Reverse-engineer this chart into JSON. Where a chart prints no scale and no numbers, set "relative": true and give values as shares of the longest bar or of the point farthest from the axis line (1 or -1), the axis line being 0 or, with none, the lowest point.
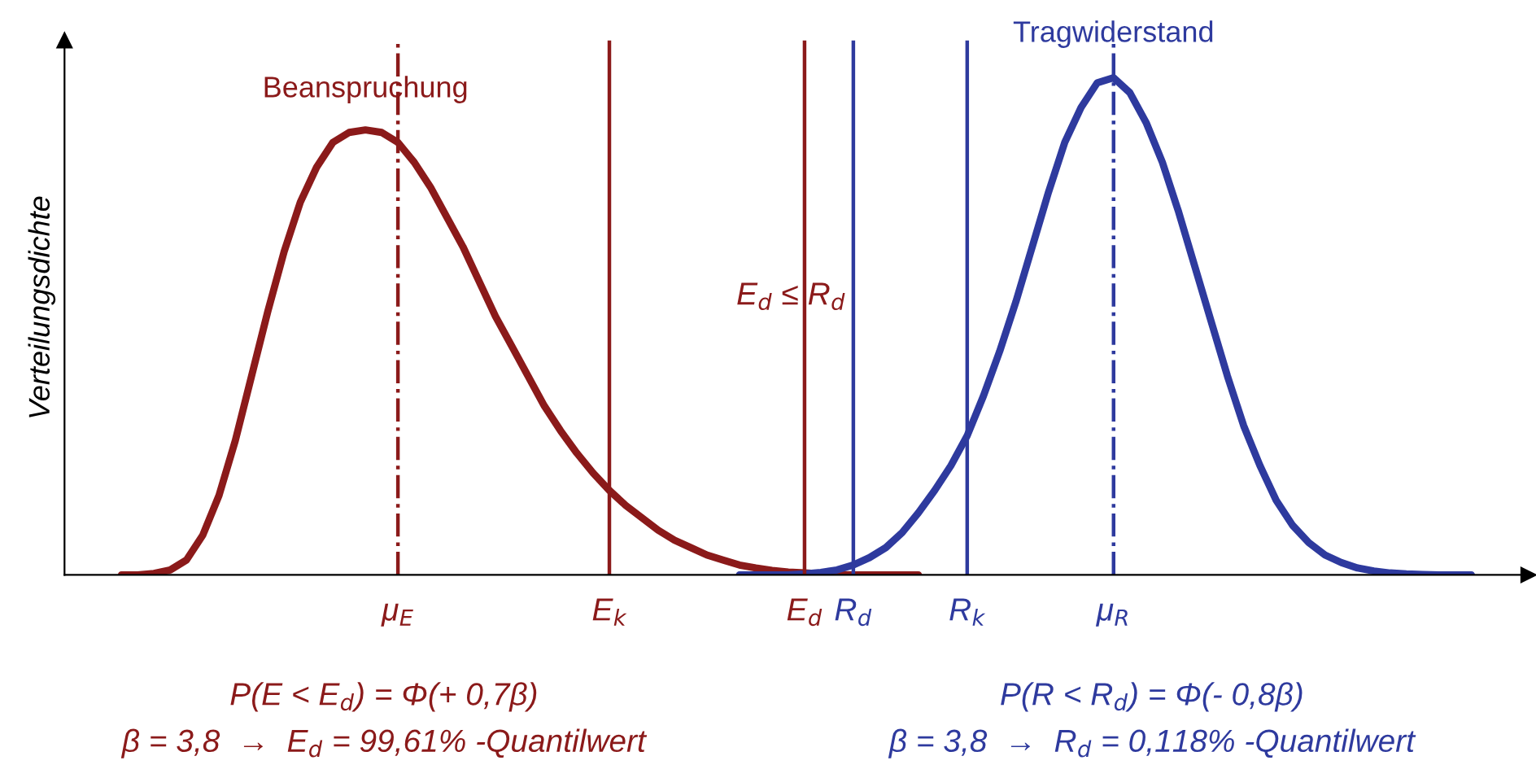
{
  "chart_data": {
    "type": "line",
    "relative": true,
    "ylabel": "Verteilungsdichte",
    "grid": false,
    "legend": false,
    "marker": "none",
    "line_style": "solid",
    "categories": [
      null,
      null,
      null,
      null,
      null,
      null,
      null,
      null,
      null,
      null,
      null,
      null,
      null,
      null,
      null,
      null,
      null,
      null,
      null,
      null,
      "μ$_{E}$",
      null,
      null,
      null,
      null,
      null,
      null,
      null,
      null,
      null,
      null,
      null,
      null,
      "E$_{k}$",
      null,
      null,
      null,
      null,
      null,
      null,
      null,
      null,
      null,
      null,
      null,
      "E$_{d}$",
      null,
      null,
      "R$_{d}$",
      null,
      null,
      null,
      null,
      null,
      null,
      "R$_{k}$",
      null,
      null,
      null,
      null,
      null,
      null,
      null,
      null,
      "μ$_{R}$",
      null,
      null,
      null,
      null,
      null,
      null,
      null,
      null,
      null,
      null,
      null,
      null,
      null,
      null,
      null,
      null,
      null,
      null,
      null,
      null,
      null,
      null,
      null,
      null,
      null
    ],
    "series": [
      {
        "name": "Beanspruchung",
        "color": "#8b1a1a",
        "values": [
          null,
          null,
          null,
          0,
          0,
          0.003,
          0.01,
          0.03,
          0.08,
          0.16,
          0.27,
          0.4,
          0.53,
          0.65,
          0.75,
          0.82,
          0.87,
          0.89,
          0.895,
          0.89,
          0.87,
          0.83,
          0.78,
          0.72,
          0.66,
          0.59,
          0.52,
          0.46,
          0.4,
          0.34,
          0.29,
          0.245,
          0.205,
          0.17,
          0.14,
          0.115,
          0.09,
          0.07,
          0.055,
          0.04,
          0.03,
          0.02,
          0.014,
          0.009,
          0.006,
          0.004,
          0.002,
          0.001,
          0,
          0,
          0,
          0,
          0,
          null,
          null,
          null,
          null,
          null,
          null,
          null,
          null,
          null,
          null,
          null,
          null,
          null,
          null,
          null,
          null,
          null,
          null,
          null,
          null,
          null,
          null,
          null,
          null,
          null,
          null,
          null,
          null,
          null,
          null,
          null,
          null,
          null,
          null,
          null,
          null,
          null
        ]
      },
      {
        "name": "Tragwiderstand",
        "color": "#2e3a9e",
        "values": [
          null,
          null,
          null,
          null,
          null,
          null,
          null,
          null,
          null,
          null,
          null,
          null,
          null,
          null,
          null,
          null,
          null,
          null,
          null,
          null,
          null,
          null,
          null,
          null,
          null,
          null,
          null,
          null,
          null,
          null,
          null,
          null,
          null,
          null,
          null,
          null,
          null,
          null,
          null,
          null,
          null,
          0,
          0,
          0,
          0,
          0.002,
          0.005,
          0.01,
          0.02,
          0.035,
          0.055,
          0.085,
          0.125,
          0.17,
          0.22,
          0.28,
          0.36,
          0.45,
          0.55,
          0.66,
          0.77,
          0.87,
          0.94,
          0.99,
          1.0,
          0.97,
          0.91,
          0.83,
          0.73,
          0.62,
          0.51,
          0.4,
          0.3,
          0.22,
          0.15,
          0.1,
          0.065,
          0.04,
          0.025,
          0.014,
          0.008,
          0.004,
          0.002,
          0.001,
          0,
          0,
          0,
          null,
          null,
          null
        ]
      }
    ],
    "ref_lines": [
      {
        "axis": "x",
        "value": "μ$_{E}$",
        "color": "#8b1a1a",
        "line_style": "dashdot"
      },
      {
        "axis": "x",
        "value": "E$_{k}$",
        "color": "#8b1a1a",
        "line_style": "solid"
      },
      {
        "axis": "x",
        "value": "E$_{d}$",
        "color": "#8b1a1a",
        "line_style": "solid"
      },
      {
        "axis": "x",
        "value": "R$_{d}$",
        "color": "#2e3a9e",
        "line_style": "solid"
      },
      {
        "axis": "x",
        "value": "R$_{k}$",
        "color": "#2e3a9e",
        "line_style": "solid"
      },
      {
        "axis": "x",
        "value": "μ$_{R}$",
        "color": "#2e3a9e",
        "line_style": "dashdot"
      }
    ],
    "annotations": [
      "E$_{d}$ ≤ R$_{d}$",
      "P(E < E$_{d}$) = Φ(+ 0,7β)",
      "β = 3,8  →  E$_{d}$ = 99,61% -Quantilwert",
      "P(R < R$_{d}$) = Φ(- 0,8β)",
      "β = 3,8  →  R$_{d}$ = 0,118% -Quantilwert"
    ]
  }
}
